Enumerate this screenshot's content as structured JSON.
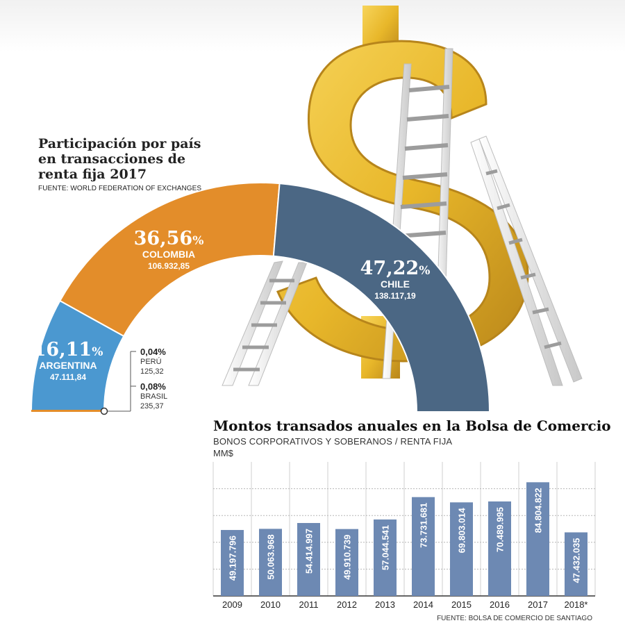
{
  "donut": {
    "title": "Participación por país en transacciones de renta fija 2017",
    "source": "FUENTE: WORLD FEDERATION OF EXCHANGES"
  },
  "bars": {
    "title": "Montos transados anuales en la Bolsa de Comercio",
    "subtitle": "BONOS CORPORATIVOS Y SOBERANOS / RENTA FIJA",
    "unit": "MM$",
    "source": "FUENTE: BOLSA DE COMERCIO DE SANTIAGO"
  },
  "chart_data": [
    {
      "type": "pie",
      "subtype": "semi-donut",
      "title": "Participación por país en transacciones de renta fija 2017",
      "source": "FUENTE: WORLD FEDERATION OF EXCHANGES",
      "slices": [
        {
          "name": "ARGENTINA",
          "pct": 16.11,
          "pct_label": "16,11",
          "value_label": "47.111,84",
          "color": "#4b98d0"
        },
        {
          "name": "COLOMBIA",
          "pct": 36.56,
          "pct_label": "36,56",
          "value_label": "106.932,85",
          "color": "#e38d2a"
        },
        {
          "name": "CHILE",
          "pct": 47.22,
          "pct_label": "47,22",
          "value_label": "138.117,19",
          "color": "#4b6784"
        },
        {
          "name": "PERÚ",
          "pct": 0.04,
          "pct_label": "0,04%",
          "value_label": "125,32",
          "color": "#e38d2a"
        },
        {
          "name": "BRASIL",
          "pct": 0.08,
          "pct_label": "0,08%",
          "value_label": "235,37",
          "color": "#e38d2a"
        }
      ]
    },
    {
      "type": "bar",
      "title": "Montos transados anuales en la Bolsa de Comercio",
      "subtitle": "BONOS CORPORATIVOS Y SOBERANOS / RENTA FIJA",
      "ylabel": "MM$",
      "categories": [
        "2009",
        "2010",
        "2011",
        "2012",
        "2013",
        "2014",
        "2015",
        "2016",
        "2017",
        "2018*"
      ],
      "values": [
        49197796,
        50063968,
        54414997,
        49910739,
        57044541,
        73731681,
        69803014,
        70489995,
        84804822,
        47432035
      ],
      "value_labels": [
        "49.197.796",
        "50.063.968",
        "54.414.997",
        "49.910.739",
        "57.044.541",
        "73.731.681",
        "69.803.014",
        "70.489.995",
        "84.804.822",
        "47.432.035"
      ],
      "ylim": [
        0,
        100000000
      ],
      "bar_color": "#6d89b3",
      "grid": true
    }
  ],
  "colors": {
    "argentina": "#4b98d0",
    "colombia": "#e38d2a",
    "chile": "#4b6784",
    "bars": "#6d89b3",
    "gold": "#e8b72a"
  }
}
